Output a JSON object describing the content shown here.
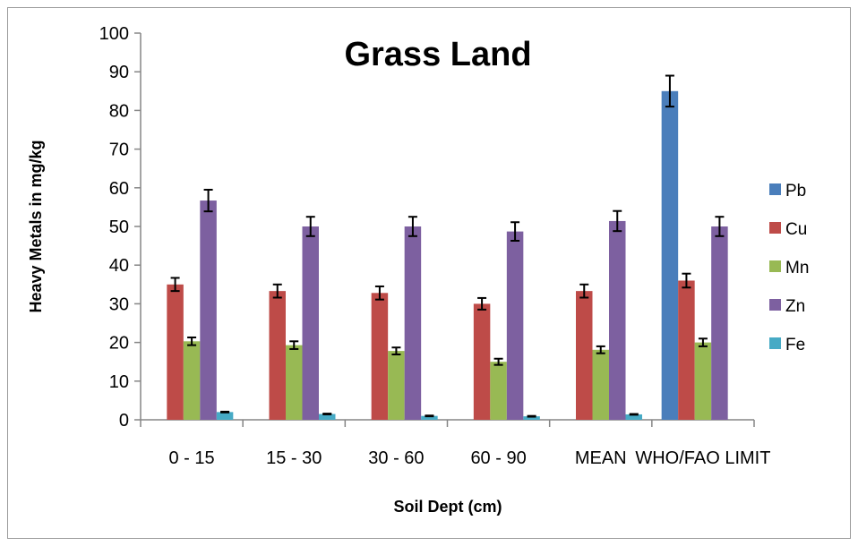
{
  "chart_data": {
    "type": "bar",
    "title": "Grass Land",
    "xlabel": "Soil Dept (cm)",
    "ylabel": "Heavy Metals in mg/kg",
    "categories": [
      "0 - 15",
      "15 - 30",
      "30 - 60",
      "60 - 90",
      "MEAN",
      "WHO/FAO LIMIT"
    ],
    "ylim": [
      0,
      100
    ],
    "yticks": [
      0,
      10,
      20,
      30,
      40,
      50,
      60,
      70,
      80,
      90,
      100
    ],
    "grid": false,
    "legend_position": "right",
    "series": [
      {
        "name": "Pb",
        "color": "#4a7ebb",
        "values": [
          0,
          0,
          0,
          0,
          0,
          85
        ],
        "errors": [
          0,
          0,
          0,
          0,
          0,
          4
        ]
      },
      {
        "name": "Cu",
        "color": "#be4b48",
        "values": [
          35,
          33.3,
          32.8,
          30,
          33.3,
          36
        ],
        "errors": [
          1.7,
          1.7,
          1.7,
          1.5,
          1.7,
          1.8
        ]
      },
      {
        "name": "Mn",
        "color": "#98b954",
        "values": [
          20.3,
          19.3,
          17.8,
          15,
          18.1,
          20
        ],
        "errors": [
          1,
          1,
          0.9,
          0.8,
          0.9,
          1
        ]
      },
      {
        "name": "Zn",
        "color": "#7d60a0",
        "values": [
          56.7,
          50,
          50,
          48.7,
          51.4,
          50
        ],
        "errors": [
          2.8,
          2.5,
          2.5,
          2.4,
          2.6,
          2.5
        ]
      },
      {
        "name": "Fe",
        "color": "#46aac5",
        "values": [
          2,
          1.5,
          1,
          0.9,
          1.4,
          0
        ],
        "errors": [
          0.1,
          0.1,
          0.1,
          0.1,
          0.1,
          0
        ]
      }
    ]
  }
}
